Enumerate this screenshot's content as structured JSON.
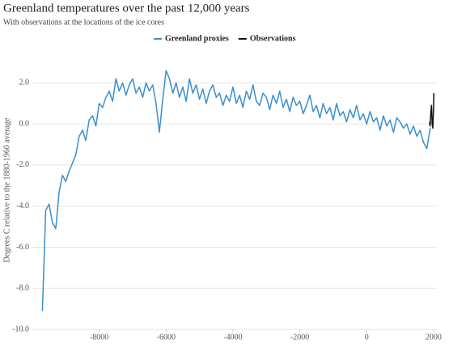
{
  "chart_data": {
    "type": "line",
    "title": "Greenland temperatures over the past 12,000 years",
    "subtitle": "With observations at the locations of the ice cores",
    "ylabel": "Degrees C relative to the 1880-1960 average",
    "xlim": [
      -10000,
      2100
    ],
    "xticks": [
      -8000,
      -6000,
      -4000,
      -2000,
      0,
      2000
    ],
    "ylim": [
      -10,
      3
    ],
    "yticks": [
      {
        "value": 2,
        "label": "2.0"
      },
      {
        "value": 0,
        "label": "0.0"
      },
      {
        "value": -2,
        "label": "-2.0"
      },
      {
        "value": -4,
        "label": "-4.0"
      },
      {
        "value": -6,
        "label": "-6.0"
      },
      {
        "value": -8,
        "label": "-8.0"
      },
      {
        "value": -10,
        "label": "-10.0"
      }
    ],
    "grid": true,
    "series": [
      {
        "name": "Greenland proxies",
        "color": "#3a8fd0",
        "x": [
          -9700,
          -9600,
          -9500,
          -9400,
          -9300,
          -9200,
          -9100,
          -9000,
          -8900,
          -8800,
          -8700,
          -8600,
          -8500,
          -8400,
          -8300,
          -8200,
          -8100,
          -8000,
          -7900,
          -7800,
          -7700,
          -7600,
          -7500,
          -7400,
          -7300,
          -7200,
          -7100,
          -7000,
          -6900,
          -6800,
          -6700,
          -6600,
          -6500,
          -6400,
          -6300,
          -6200,
          -6100,
          -6000,
          -5900,
          -5800,
          -5700,
          -5600,
          -5500,
          -5400,
          -5300,
          -5200,
          -5100,
          -5000,
          -4900,
          -4800,
          -4700,
          -4600,
          -4500,
          -4400,
          -4300,
          -4200,
          -4100,
          -4000,
          -3900,
          -3800,
          -3700,
          -3600,
          -3500,
          -3400,
          -3300,
          -3200,
          -3100,
          -3000,
          -2900,
          -2800,
          -2700,
          -2600,
          -2500,
          -2400,
          -2300,
          -2200,
          -2100,
          -2000,
          -1900,
          -1800,
          -1700,
          -1600,
          -1500,
          -1400,
          -1300,
          -1200,
          -1100,
          -1000,
          -900,
          -800,
          -700,
          -600,
          -500,
          -400,
          -300,
          -200,
          -100,
          0,
          100,
          200,
          300,
          400,
          500,
          600,
          700,
          800,
          900,
          1000,
          1100,
          1200,
          1300,
          1400,
          1500,
          1600,
          1700,
          1800,
          1900
        ],
        "values": [
          -9.1,
          -4.2,
          -3.9,
          -4.8,
          -5.1,
          -3.3,
          -2.5,
          -2.8,
          -2.3,
          -1.9,
          -1.5,
          -0.6,
          -0.3,
          -0.8,
          0.2,
          0.4,
          -0.1,
          1.0,
          0.8,
          1.3,
          1.6,
          1.1,
          2.2,
          1.6,
          2.0,
          1.4,
          1.9,
          2.2,
          1.5,
          1.8,
          1.3,
          2.0,
          1.6,
          1.9,
          1.0,
          -0.4,
          1.2,
          2.6,
          2.2,
          1.5,
          2.0,
          1.3,
          1.8,
          1.1,
          2.2,
          1.5,
          1.9,
          1.2,
          1.7,
          1.0,
          1.6,
          1.9,
          1.3,
          1.5,
          0.9,
          1.4,
          1.1,
          1.8,
          1.0,
          1.4,
          0.8,
          1.6,
          1.2,
          1.9,
          1.1,
          0.9,
          1.5,
          1.3,
          0.7,
          1.4,
          1.0,
          1.6,
          0.8,
          1.2,
          0.6,
          1.3,
          0.9,
          1.1,
          0.5,
          0.9,
          1.4,
          0.6,
          0.9,
          0.3,
          1.0,
          0.5,
          0.8,
          0.2,
          1.0,
          0.4,
          0.6,
          0.1,
          0.7,
          0.3,
          0.9,
          0.2,
          0.5,
          0.0,
          0.6,
          0.1,
          0.3,
          -0.3,
          0.4,
          -0.1,
          0.2,
          -0.4,
          0.3,
          0.1,
          -0.2,
          0.0,
          -0.5,
          -0.1,
          -0.6,
          -0.3,
          -0.9,
          -1.2,
          -0.2
        ]
      },
      {
        "name": "Observations",
        "color": "#111111",
        "x": [
          1880,
          1900,
          1920,
          1940,
          1960,
          1980,
          2000,
          2010
        ],
        "values": [
          0.1,
          -0.1,
          0.6,
          0.9,
          0.0,
          -0.2,
          0.8,
          1.5
        ]
      }
    ]
  }
}
